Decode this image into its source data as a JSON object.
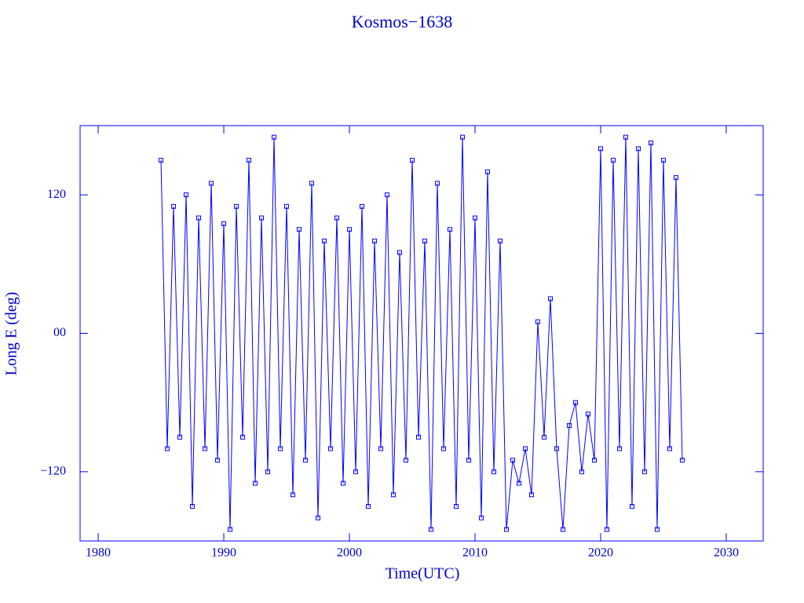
{
  "chart_data": {
    "type": "line",
    "title": "Kosmos−1638",
    "xlabel": "Time(UTC)",
    "ylabel": "Long E (deg)",
    "x": [
      1985.0,
      1985.5,
      1986.0,
      1986.5,
      1987.0,
      1987.5,
      1988.0,
      1988.5,
      1989.0,
      1989.5,
      1990.0,
      1990.5,
      1991.0,
      1991.5,
      1992.0,
      1992.5,
      1993.0,
      1993.5,
      1994.0,
      1994.5,
      1995.0,
      1995.5,
      1996.0,
      1996.5,
      1997.0,
      1997.5,
      1998.0,
      1998.5,
      1999.0,
      1999.5,
      2000.0,
      2000.5,
      2001.0,
      2001.5,
      2002.0,
      2002.5,
      2003.0,
      2003.5,
      2004.0,
      2004.5,
      2005.0,
      2005.5,
      2006.0,
      2006.5,
      2007.0,
      2007.5,
      2008.0,
      2008.5,
      2009.0,
      2009.5,
      2010.0,
      2010.5,
      2011.0,
      2011.5,
      2012.0,
      2012.5,
      2013.0,
      2013.5,
      2014.0,
      2014.5,
      2015.0,
      2015.5,
      2016.0,
      2016.5,
      2017.0,
      2017.5,
      2018.0,
      2018.5,
      2019.0,
      2019.5,
      2020.0,
      2020.5,
      2021.0,
      2021.5,
      2022.0,
      2022.5,
      2023.0,
      2023.5,
      2024.0,
      2024.5,
      2025.0,
      2025.5,
      2026.0,
      2026.5
    ],
    "series": [
      {
        "color": "#0000ff",
        "values": [
          150,
          -100,
          110,
          -90,
          120,
          -150,
          100,
          -100,
          130,
          -110,
          95,
          -170,
          110,
          -90,
          150,
          -130,
          100,
          -120,
          170,
          -100,
          110,
          -140,
          90,
          -110,
          130,
          -160,
          80,
          -100,
          100,
          -130,
          90,
          -120,
          110,
          -150,
          80,
          -100,
          120,
          -140,
          70,
          -110,
          150,
          -90,
          80,
          -170,
          130,
          -100,
          90,
          -150,
          170,
          -110,
          100,
          -160,
          140,
          -120,
          80,
          -170,
          -110,
          -130,
          -100,
          -140,
          10,
          -90,
          30,
          -100,
          -170,
          -80,
          -60,
          -120,
          -70,
          -110,
          160,
          -170,
          150,
          -100,
          170,
          -150,
          160,
          -120,
          165,
          -170,
          150,
          -100,
          135,
          -110
        ]
      }
    ],
    "xlim": [
      1978.56,
      2032.94
    ],
    "xticks": [
      1980,
      1990,
      2000,
      2010,
      2020,
      2030
    ],
    "ylim": [
      -180,
      180
    ],
    "yticks": [
      {
        "value": -120,
        "label": "−120"
      },
      {
        "value": 0,
        "label": "00"
      },
      120
    ],
    "axis_color": "#0000ff"
  }
}
